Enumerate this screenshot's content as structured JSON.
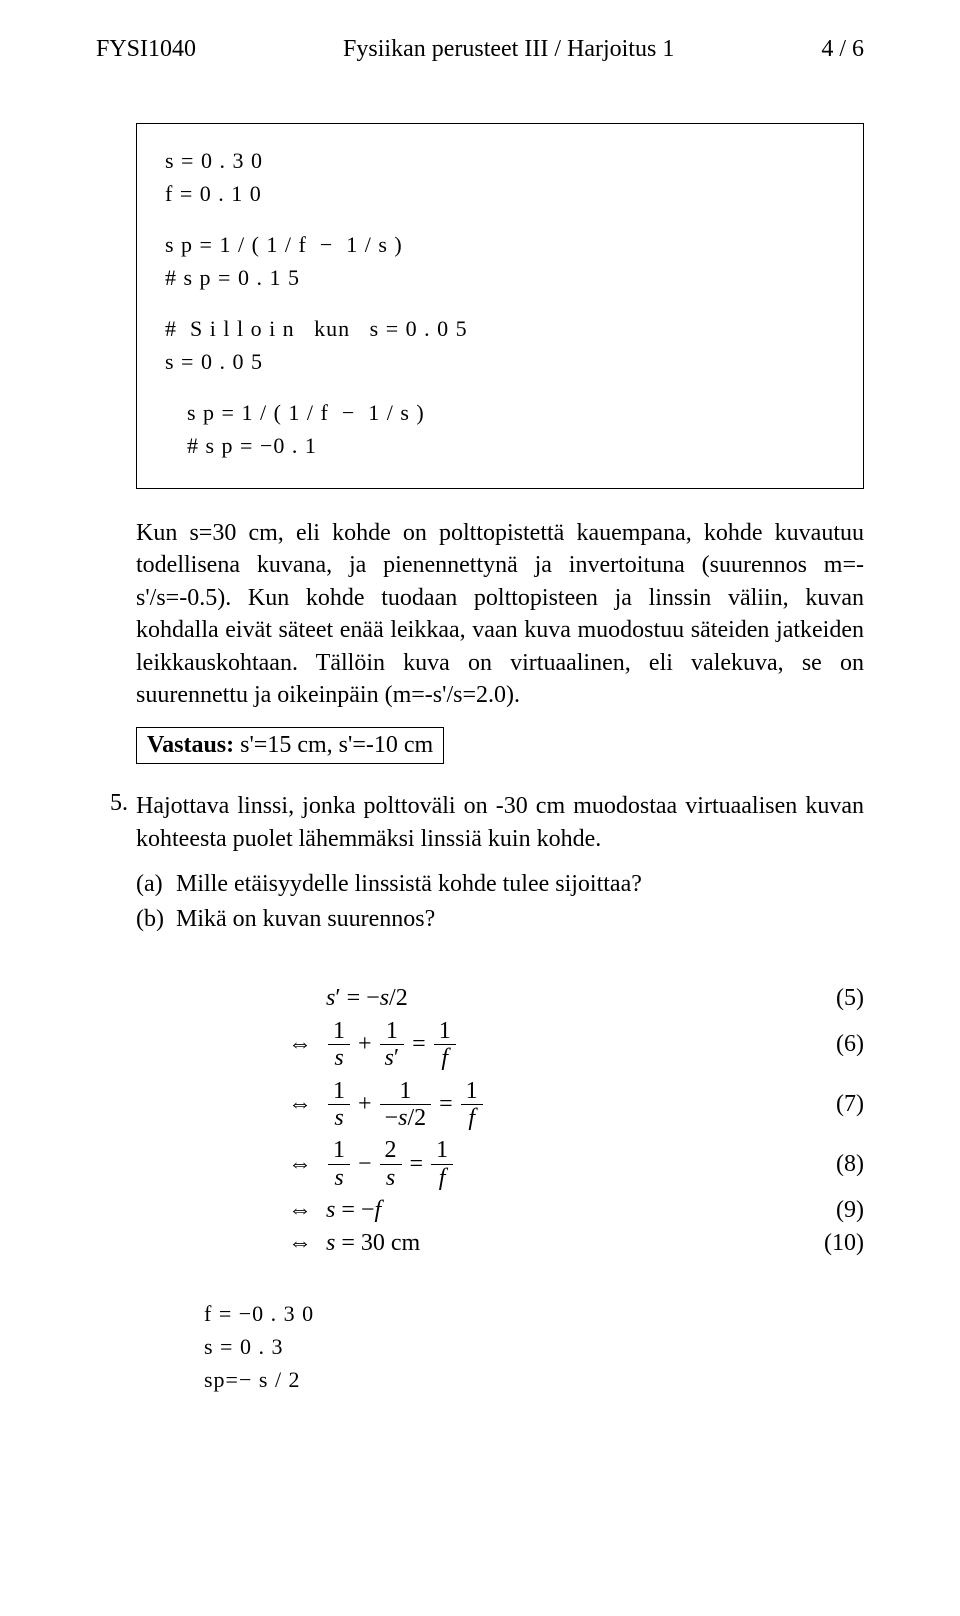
{
  "header": {
    "left": "FYSI1040",
    "center": "Fysiikan perusteet III / Harjoitus 1",
    "right": "4 / 6"
  },
  "code1": {
    "l1": "s = 0 . 3 0",
    "l2": "f = 0 . 1 0",
    "l3": "s p = 1 / ( 1 / f  −  1 / s )",
    "l4": "# s p = 0 . 1 5",
    "l5": "#  S i l l o i n   kun   s = 0 . 0 5",
    "l6": "s = 0 . 0 5",
    "l7": "s p = 1 / ( 1 / f  −  1 / s )",
    "l8": "# s p = −0 . 1"
  },
  "para1": "Kun s=30 cm, eli kohde on polttopistettä kauempana, kohde kuvautuu todellisena kuvana, ja pienennettynä ja invertoituna (suurennos m=-s'/s=-0.5). Kun kohde tuodaan polttopisteen ja linssin väliin, kuvan kohdalla eivät säteet enää leikkaa, vaan kuva muodostuu säteiden jatkeiden leikkauskohtaan. Tällöin kuva on virtuaalinen, eli valekuva, se on suurennettu ja oikeinpäin (m=-s'/s=2.0).",
  "answer1_label": "Vastaus:",
  "answer1_text": " s'=15 cm, s'=-10 cm",
  "q5": {
    "num": "5.",
    "text": "Hajottava linssi, jonka polttoväli on -30 cm muodostaa virtuaalisen kuvan kohteesta puolet lähemmäksi linssiä kuin kohde.",
    "a_label": "(a)",
    "a_text": "Mille etäisyydelle linssistä kohde tulee sijoittaa?",
    "b_label": "(b)",
    "b_text": "Mikä on kuvan suurennos?"
  },
  "eqs": {
    "iff": "⇔",
    "e5": {
      "body_lhs": "s' = −s/2",
      "num": "(5)"
    },
    "e6": {
      "num": "(6)"
    },
    "e7": {
      "num": "(7)"
    },
    "e8": {
      "num": "(8)"
    },
    "e9": {
      "body": "s = −f",
      "num": "(9)"
    },
    "e10": {
      "body": "s = 30 cm",
      "num": "(10)"
    }
  },
  "code2": {
    "l1": "f = −0 . 3 0",
    "l2": "s = 0 . 3",
    "l3": "sp=− s / 2"
  }
}
